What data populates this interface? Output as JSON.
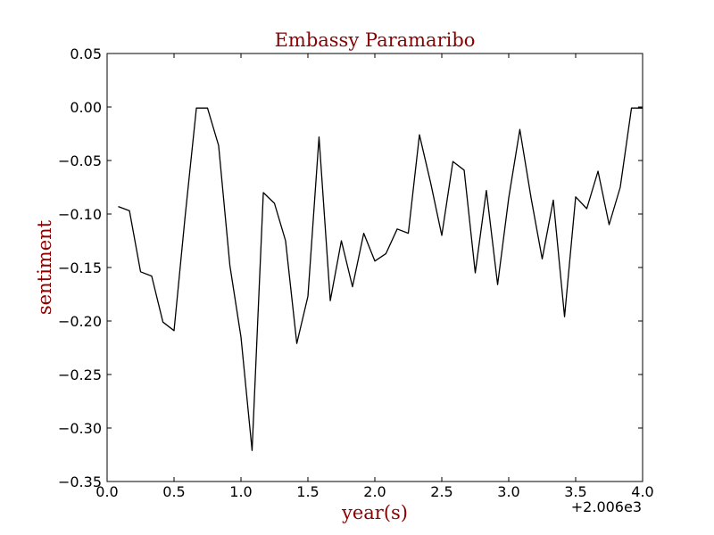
{
  "chart_data": {
    "type": "line",
    "title": "Embassy Paramaribo",
    "xlabel": "year(s)",
    "ylabel": "sentiment",
    "x_offset_label": "+2.006e3",
    "xlim": [
      0.0,
      4.0
    ],
    "ylim": [
      -0.35,
      0.05
    ],
    "xticks": [
      0.0,
      0.5,
      1.0,
      1.5,
      2.0,
      2.5,
      3.0,
      3.5,
      4.0
    ],
    "xtick_labels": [
      "0.0",
      "0.5",
      "1.0",
      "1.5",
      "2.0",
      "2.5",
      "3.0",
      "3.5",
      "4.0"
    ],
    "yticks": [
      0.05,
      0.0,
      -0.05,
      -0.1,
      -0.15,
      -0.2,
      -0.25,
      -0.3,
      -0.35
    ],
    "ytick_labels": [
      "0.05",
      "0.00",
      "−0.05",
      "−0.10",
      "−0.15",
      "−0.20",
      "−0.25",
      "−0.30",
      "−0.35"
    ],
    "grid": false,
    "colors": {
      "line": "#000000",
      "title": "#8b0000",
      "axis_label": "#8b0000"
    },
    "series": [
      {
        "x": [
          0.083,
          0.167,
          0.25,
          0.333,
          0.417,
          0.5,
          0.583,
          0.667,
          0.75,
          0.833,
          0.917,
          1.0,
          1.083,
          1.167,
          1.25,
          1.333,
          1.417,
          1.5,
          1.583,
          1.667,
          1.75,
          1.833,
          1.917,
          2.0,
          2.083,
          2.167,
          2.25,
          2.333,
          2.417,
          2.5,
          2.583,
          2.667,
          2.75,
          2.833,
          2.917,
          3.0,
          3.083,
          3.167,
          3.25,
          3.333,
          3.417,
          3.5,
          3.583,
          3.667,
          3.75,
          3.833,
          3.917,
          4.0
        ],
        "y": [
          -0.093,
          -0.097,
          -0.154,
          -0.158,
          -0.201,
          -0.209,
          -0.102,
          -0.001,
          -0.001,
          -0.036,
          -0.148,
          -0.215,
          -0.321,
          -0.08,
          -0.09,
          -0.125,
          -0.221,
          -0.177,
          -0.028,
          -0.181,
          -0.125,
          -0.168,
          -0.118,
          -0.144,
          -0.137,
          -0.114,
          -0.118,
          -0.026,
          -0.071,
          -0.12,
          -0.051,
          -0.059,
          -0.155,
          -0.078,
          -0.166,
          -0.085,
          -0.021,
          -0.085,
          -0.142,
          -0.087,
          -0.196,
          -0.084,
          -0.095,
          -0.06,
          -0.11,
          -0.075,
          -0.001,
          -0.001
        ]
      }
    ]
  }
}
